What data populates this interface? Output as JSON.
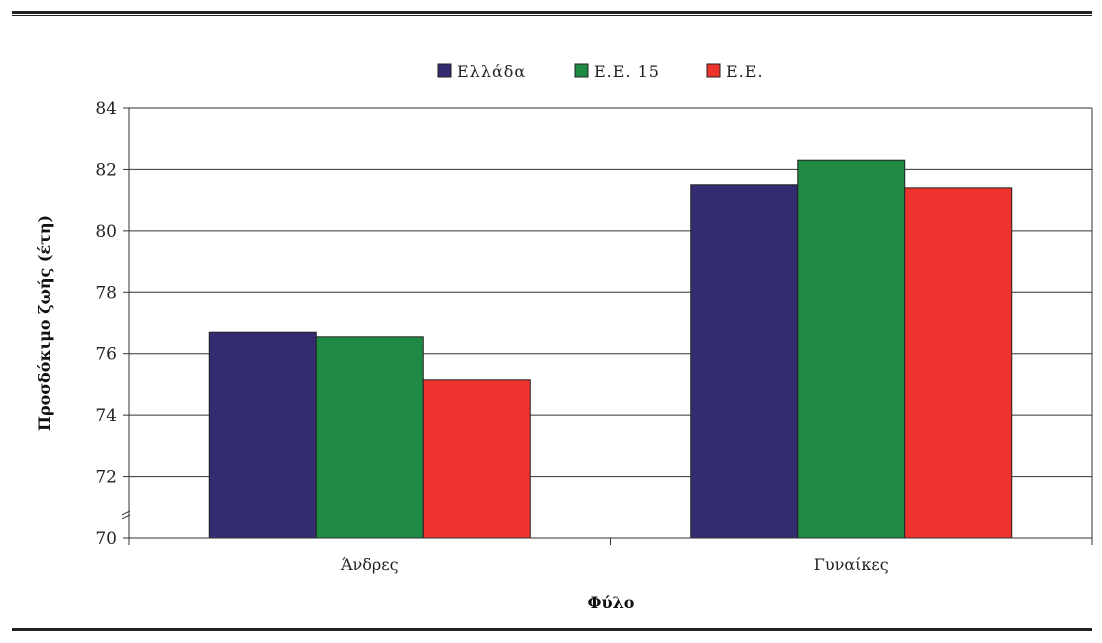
{
  "chart_data": {
    "type": "bar",
    "categories": [
      "Άνδρες",
      "Γυναίκες"
    ],
    "series": [
      {
        "name": "Ελλάδα",
        "values": [
          76.7,
          81.5
        ],
        "color": "#332c70"
      },
      {
        "name": "Ε.Ε. 15",
        "values": [
          76.55,
          82.3
        ],
        "color": "#1e8a44"
      },
      {
        "name": "Ε.Ε.",
        "values": [
          75.15,
          81.4
        ],
        "color": "#ee322d"
      }
    ],
    "xlabel": "Φύλο",
    "ylabel": "Προσδόκιμο ζωής (έτη)",
    "ylim": [
      70,
      84
    ],
    "yticks": [
      "70",
      "72",
      "74",
      "76",
      "78",
      "80",
      "82",
      "84"
    ],
    "grid": true,
    "legend_position": "top-center"
  }
}
